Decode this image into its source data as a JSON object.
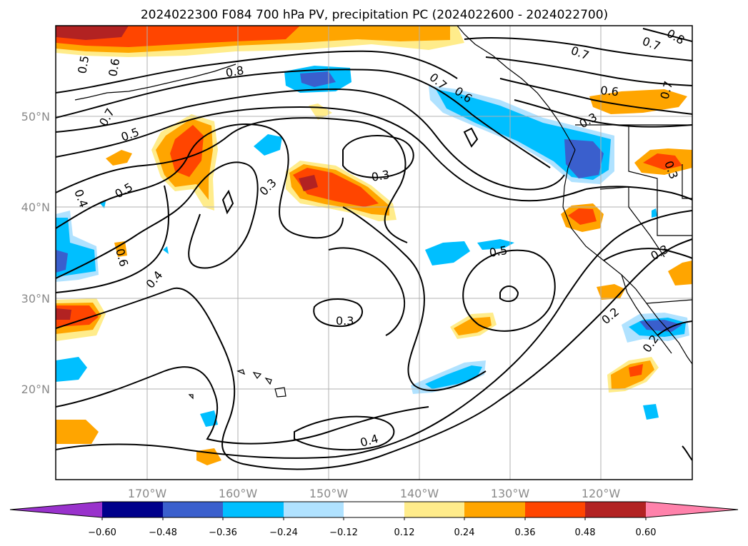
{
  "title": "2024022300 F084 700 hPa PV, precipitation PC (2024022600 - 2024022700)",
  "axes": {
    "lon_ticks": [
      "170°W",
      "160°W",
      "150°W",
      "140°W",
      "130°W",
      "120°W"
    ],
    "lat_ticks": [
      "50°N",
      "40°N",
      "30°N",
      "20°N"
    ]
  },
  "colorbar": {
    "tick_labels": [
      "−0.60",
      "−0.48",
      "−0.36",
      "−0.24",
      "−0.12",
      "0.12",
      "0.24",
      "0.36",
      "0.48",
      "0.60"
    ],
    "colors": [
      "#9932cc",
      "#00008b",
      "#3a5fcd",
      "#00bfff",
      "#b0e2ff",
      "#ffffff",
      "#ffec8b",
      "#ffa500",
      "#ff4500",
      "#b22222",
      "#ff82ab"
    ]
  },
  "contour_labels": [
    "0.5",
    "0.6",
    "0.8",
    "0.7",
    "0.5",
    "0.4",
    "0.5",
    "0.6",
    "0.4",
    "0.3",
    "0.3",
    "0.7",
    "0.6",
    "0.7",
    "0.7",
    "0.8",
    "0.6",
    "0.7",
    "0.3",
    "0.3",
    "0.5",
    "0.3",
    "0.3",
    "0.2",
    "0.2",
    "0.4"
  ],
  "chart_data": {
    "type": "heatmap",
    "title": "2024022300 F084 700 hPa PV, precipitation PC (2024022600 - 2024022700)",
    "xlabel": "",
    "ylabel": "",
    "x_ticks": [
      "170°W",
      "160°W",
      "150°W",
      "140°W",
      "130°W",
      "120°W"
    ],
    "y_ticks": [
      "50°N",
      "40°N",
      "30°N",
      "20°N"
    ],
    "xlim": [
      -180,
      -110
    ],
    "ylim": [
      10,
      60
    ],
    "grid": true,
    "colorbar_levels": [
      -0.6,
      -0.48,
      -0.36,
      -0.24,
      -0.12,
      0.12,
      0.24,
      0.36,
      0.48,
      0.6
    ],
    "contour_levels": [
      0.2,
      0.3,
      0.4,
      0.5,
      0.6,
      0.7,
      0.8
    ]
  }
}
